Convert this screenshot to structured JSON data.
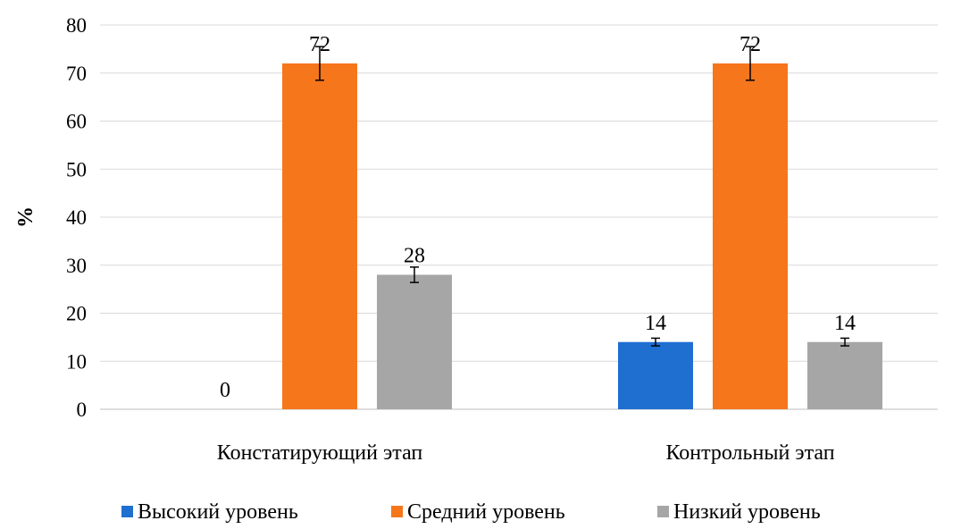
{
  "chart_data": {
    "type": "bar",
    "title": "",
    "xlabel": "",
    "ylabel": "%",
    "ylim": [
      0,
      80
    ],
    "yticks": [
      0,
      10,
      20,
      30,
      40,
      50,
      60,
      70,
      80
    ],
    "grid": true,
    "legend_position": "bottom",
    "categories": [
      "Констатирующий этап",
      "Контрольный этап"
    ],
    "series": [
      {
        "name": "Высокий уровень",
        "color": "#1f6fd1",
        "values": [
          0,
          14
        ],
        "errors": [
          0,
          0.8
        ]
      },
      {
        "name": "Средний уровень",
        "color": "#f6761c",
        "values": [
          72,
          72
        ],
        "errors": [
          3.5,
          3.5
        ]
      },
      {
        "name": "Низкий уровень",
        "color": "#a6a6a6",
        "values": [
          28,
          14
        ],
        "errors": [
          1.6,
          0.8
        ]
      }
    ],
    "data_labels": [
      [
        "0",
        "14"
      ],
      [
        "72",
        "72"
      ],
      [
        "28",
        "14"
      ]
    ]
  }
}
